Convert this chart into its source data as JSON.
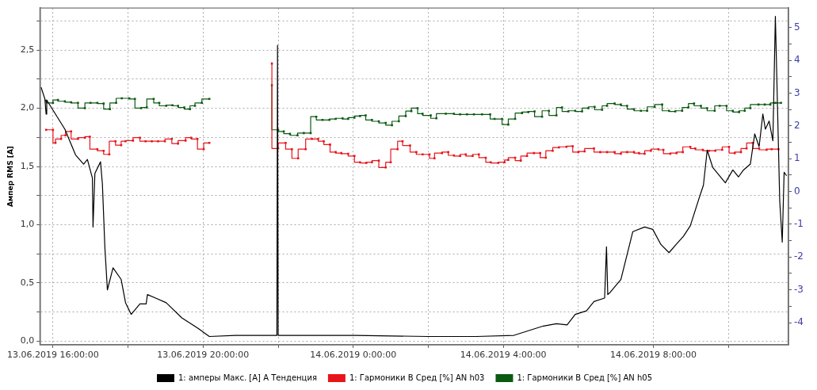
{
  "chart_data": {
    "type": "line",
    "ylabel": "Ампер RMS [A]",
    "grid": true,
    "legend": "bottom",
    "xlim": [
      "2019-06-13T15:39",
      "2019-06-14T11:36"
    ],
    "xticks": [
      {
        "value": "2019-06-13T16:00",
        "label": "13.06.2019 16:00:00"
      },
      {
        "value": "2019-06-13T18:00",
        "label": null
      },
      {
        "value": "2019-06-13T20:00",
        "label": "13.06.2019 20:00:00"
      },
      {
        "value": "2019-06-13T22:00",
        "label": null
      },
      {
        "value": "2019-06-14T00:00",
        "label": "14.06.2019 0:00:00"
      },
      {
        "value": "2019-06-14T02:00",
        "label": null
      },
      {
        "value": "2019-06-14T04:00",
        "label": "14.06.2019 4:00:00"
      },
      {
        "value": "2019-06-14T06:00",
        "label": null
      },
      {
        "value": "2019-06-14T08:00",
        "label": "14.06.2019 8:00:00"
      },
      {
        "value": "2019-06-14T10:00",
        "label": null
      }
    ],
    "ylim": [
      -0.03,
      2.86
    ],
    "yticks": [
      {
        "value": 0,
        "label": "0,0"
      },
      {
        "value": 0.25,
        "label": null
      },
      {
        "value": 0.5,
        "label": "0,5"
      },
      {
        "value": 0.75,
        "label": null
      },
      {
        "value": 1,
        "label": "1,0"
      },
      {
        "value": 1.25,
        "label": null
      },
      {
        "value": 1.5,
        "label": "1,5"
      },
      {
        "value": 1.75,
        "label": null
      },
      {
        "value": 2,
        "label": "2,0"
      },
      {
        "value": 2.25,
        "label": null
      },
      {
        "value": 2.5,
        "label": "2,5"
      },
      {
        "value": 2.75,
        "label": null
      }
    ],
    "y2lim": [
      -4.67,
      5.59
    ],
    "y2ticks": [
      -4,
      {
        "value": -3.5,
        "label": null
      },
      -3,
      {
        "value": -2.5,
        "label": null
      },
      -2,
      {
        "value": -1.5,
        "label": null
      },
      -1,
      {
        "value": -0.5,
        "label": null
      },
      0,
      {
        "value": 0.5,
        "label": null
      },
      1,
      {
        "value": 1.5,
        "label": null
      },
      2,
      {
        "value": 2.5,
        "label": null
      },
      3,
      {
        "value": 3.5,
        "label": null
      },
      4,
      {
        "value": 4.5,
        "label": null
      },
      5
    ],
    "series": [
      {
        "name": "1: амперы Макс. [A] A Тенденция",
        "color": "#000000",
        "type": "line",
        "marker": "none",
        "x": [
          "2019-06-13T15:41",
          "2019-06-13T15:47",
          "2019-06-13T15:49",
          "2019-06-13T15:50",
          "2019-06-13T16:19",
          "2019-06-13T16:36",
          "2019-06-13T16:49",
          "2019-06-13T16:55",
          "2019-06-13T17:03",
          "2019-06-13T17:04",
          "2019-06-13T17:07",
          "2019-06-13T17:16",
          "2019-06-13T17:19",
          "2019-06-13T17:23",
          "2019-06-13T17:27",
          "2019-06-13T17:36",
          "2019-06-13T17:49",
          "2019-06-13T17:56",
          "2019-06-13T18:05",
          "2019-06-13T18:19",
          "2019-06-13T18:29",
          "2019-06-13T18:31",
          "2019-06-13T18:44",
          "2019-06-13T19:01",
          "2019-06-13T19:26",
          "2019-06-13T19:52",
          "2019-06-13T20:10",
          "2019-06-13T20:52",
          "2019-06-13T21:58",
          "2019-06-13T21:59",
          "2019-06-13T22:00",
          "2019-06-13T23:01",
          "2019-06-14T00:04",
          "2019-06-14T02:00",
          "2019-06-14T03:17",
          "2019-06-14T04:17",
          "2019-06-14T05:04",
          "2019-06-14T05:25",
          "2019-06-14T05:42",
          "2019-06-14T05:55",
          "2019-06-14T06:13",
          "2019-06-14T06:25",
          "2019-06-14T06:42",
          "2019-06-14T06:45",
          "2019-06-14T06:47",
          "2019-06-14T06:51",
          "2019-06-14T07:08",
          "2019-06-14T07:27",
          "2019-06-14T07:46",
          "2019-06-14T07:59",
          "2019-06-14T08:12",
          "2019-06-14T08:25",
          "2019-06-14T08:38",
          "2019-06-14T08:48",
          "2019-06-14T08:59",
          "2019-06-14T09:12",
          "2019-06-14T09:20",
          "2019-06-14T09:26",
          "2019-06-14T09:35",
          "2019-06-14T09:55",
          "2019-06-14T10:07",
          "2019-06-14T10:16",
          "2019-06-14T10:24",
          "2019-06-14T10:35",
          "2019-06-14T10:42",
          "2019-06-14T10:49",
          "2019-06-14T10:55",
          "2019-06-14T10:59",
          "2019-06-14T11:05",
          "2019-06-14T11:11",
          "2019-06-14T11:15",
          "2019-06-14T11:22",
          "2019-06-14T11:26",
          "2019-06-14T11:29",
          "2019-06-14T11:33"
        ],
        "values": [
          2.18,
          2.08,
          1.95,
          2.07,
          1.82,
          1.6,
          1.52,
          1.56,
          1.4,
          0.98,
          1.44,
          1.54,
          1.35,
          0.8,
          0.44,
          0.63,
          0.53,
          0.33,
          0.23,
          0.32,
          0.32,
          0.4,
          0.37,
          0.33,
          0.2,
          0.11,
          0.04,
          0.05,
          0.05,
          2.54,
          0.05,
          0.05,
          0.05,
          0.04,
          0.04,
          0.05,
          0.13,
          0.15,
          0.14,
          0.23,
          0.26,
          0.34,
          0.37,
          0.81,
          0.4,
          0.42,
          0.53,
          0.94,
          0.98,
          0.96,
          0.83,
          0.76,
          0.84,
          0.9,
          0.99,
          1.21,
          1.34,
          1.64,
          1.49,
          1.36,
          1.47,
          1.41,
          1.47,
          1.52,
          1.78,
          1.67,
          1.95,
          1.82,
          1.89,
          1.72,
          2.79,
          1.2,
          0.85,
          1.45,
          1.42
        ]
      },
      {
        "name": "1: Гармоники B Сред [%] AN h03",
        "color": "#e8141b",
        "type": "step",
        "axis": "y2",
        "marker": "square",
        "x": [
          "2019-06-13T15:49",
          "2019-06-13T16:00",
          "2019-06-13T16:04",
          "2019-06-13T16:13",
          "2019-06-13T16:20",
          "2019-06-13T16:29",
          "2019-06-13T16:40",
          "2019-06-13T16:51",
          "2019-06-13T16:59",
          "2019-06-13T17:11",
          "2019-06-13T17:21",
          "2019-06-13T17:30",
          "2019-06-13T17:40",
          "2019-06-13T17:49",
          "2019-06-13T17:56",
          "2019-06-13T18:08",
          "2019-06-13T18:19",
          "2019-06-13T18:28",
          "2019-06-13T18:38",
          "2019-06-13T18:48",
          "2019-06-13T18:59",
          "2019-06-13T19:10",
          "2019-06-13T19:20",
          "2019-06-13T19:32",
          "2019-06-13T19:41",
          "2019-06-13T19:51",
          "2019-06-13T20:01",
          "2019-06-13T20:10",
          "2019-06-13T21:00",
          "2019-06-13T21:50",
          "2019-06-13T22:00",
          "2019-06-13T22:12",
          "2019-06-13T22:22",
          "2019-06-13T22:32",
          "2019-06-13T22:44",
          "2019-06-13T22:54",
          "2019-06-13T23:04",
          "2019-06-13T23:13",
          "2019-06-13T23:23",
          "2019-06-13T23:32",
          "2019-06-13T23:41",
          "2019-06-13T23:52",
          "2019-06-14T00:02",
          "2019-06-14T00:11",
          "2019-06-14T00:21",
          "2019-06-14T00:30",
          "2019-06-14T00:41",
          "2019-06-14T00:52",
          "2019-06-14T01:00",
          "2019-06-14T01:11",
          "2019-06-14T01:19",
          "2019-06-14T01:31",
          "2019-06-14T01:41",
          "2019-06-14T01:51",
          "2019-06-14T02:02",
          "2019-06-14T02:10",
          "2019-06-14T02:22",
          "2019-06-14T02:32",
          "2019-06-14T02:41",
          "2019-06-14T02:51",
          "2019-06-14T03:00",
          "2019-06-14T03:11",
          "2019-06-14T03:21",
          "2019-06-14T03:32",
          "2019-06-14T03:40",
          "2019-06-14T03:52",
          "2019-06-14T04:02",
          "2019-06-14T04:08",
          "2019-06-14T04:19",
          "2019-06-14T04:28",
          "2019-06-14T04:38",
          "2019-06-14T04:49",
          "2019-06-14T04:59",
          "2019-06-14T05:08",
          "2019-06-14T05:19",
          "2019-06-14T05:29",
          "2019-06-14T05:41",
          "2019-06-14T05:51",
          "2019-06-14T06:00",
          "2019-06-14T06:10",
          "2019-06-14T06:25",
          "2019-06-14T06:35",
          "2019-06-14T06:46",
          "2019-06-14T06:58",
          "2019-06-14T07:08",
          "2019-06-14T07:18",
          "2019-06-14T07:29",
          "2019-06-14T07:37",
          "2019-06-14T07:46",
          "2019-06-14T07:56",
          "2019-06-14T08:08",
          "2019-06-14T08:16",
          "2019-06-14T08:27",
          "2019-06-14T08:37",
          "2019-06-14T08:47",
          "2019-06-14T08:59",
          "2019-06-14T09:07",
          "2019-06-14T09:19",
          "2019-06-14T09:29",
          "2019-06-14T09:39",
          "2019-06-14T09:50",
          "2019-06-14T10:01",
          "2019-06-14T10:10",
          "2019-06-14T10:20",
          "2019-06-14T10:29",
          "2019-06-14T10:39",
          "2019-06-14T10:49",
          "2019-06-14T11:01",
          "2019-06-14T11:09",
          "2019-06-14T11:20"
        ],
        "values": [
          1.88,
          1.88,
          1.48,
          1.6,
          1.71,
          1.83,
          1.6,
          1.64,
          1.67,
          1.29,
          1.24,
          1.13,
          1.53,
          1.41,
          1.53,
          1.55,
          1.64,
          1.53,
          1.53,
          1.53,
          1.53,
          1.6,
          1.46,
          1.55,
          1.64,
          1.6,
          1.29,
          1.48,
          null,
          3.9,
          1.31,
          1.48,
          1.29,
          1.01,
          1.29,
          1.6,
          1.6,
          1.53,
          1.43,
          1.2,
          1.17,
          1.15,
          1.08,
          0.89,
          0.87,
          0.89,
          0.94,
          0.73,
          0.89,
          1.29,
          1.53,
          1.4,
          1.2,
          1.13,
          1.13,
          1.01,
          1.17,
          1.2,
          1.1,
          1.08,
          1.13,
          1.08,
          1.13,
          1.03,
          0.89,
          0.87,
          0.89,
          0.96,
          1.03,
          0.94,
          1.08,
          1.17,
          1.17,
          1.03,
          1.24,
          1.34,
          1.36,
          1.38,
          1.2,
          1.22,
          1.31,
          1.2,
          1.2,
          1.2,
          1.15,
          1.2,
          1.2,
          1.17,
          1.15,
          1.24,
          1.29,
          1.27,
          1.15,
          1.17,
          1.2,
          1.36,
          1.31,
          1.27,
          1.24,
          1.24,
          1.27,
          1.36,
          1.17,
          1.2,
          1.31,
          1.48,
          1.31,
          1.27,
          1.29,
          1.29
        ]
      },
      {
        "name": "1: Гармоники B Сред [%] AN h05",
        "color": "#0b5a12",
        "type": "step",
        "axis": "y2",
        "marker": "square",
        "x": [
          "2019-06-13T15:49",
          "2019-06-13T16:00",
          "2019-06-13T16:08",
          "2019-06-13T16:19",
          "2019-06-13T16:29",
          "2019-06-13T16:40",
          "2019-06-13T16:51",
          "2019-06-13T17:00",
          "2019-06-13T17:11",
          "2019-06-13T17:21",
          "2019-06-13T17:31",
          "2019-06-13T17:41",
          "2019-06-13T17:50",
          "2019-06-13T18:02",
          "2019-06-13T18:11",
          "2019-06-13T18:21",
          "2019-06-13T18:30",
          "2019-06-13T18:41",
          "2019-06-13T18:50",
          "2019-06-13T19:01",
          "2019-06-13T19:11",
          "2019-06-13T19:20",
          "2019-06-13T19:30",
          "2019-06-13T19:39",
          "2019-06-13T19:47",
          "2019-06-13T19:58",
          "2019-06-13T20:10",
          "2019-06-13T21:00",
          "2019-06-13T21:50",
          "2019-06-13T22:00",
          "2019-06-13T22:09",
          "2019-06-13T22:19",
          "2019-06-13T22:31",
          "2019-06-13T22:41",
          "2019-06-13T22:52",
          "2019-06-13T23:01",
          "2019-06-13T23:11",
          "2019-06-13T23:22",
          "2019-06-13T23:32",
          "2019-06-13T23:43",
          "2019-06-13T23:52",
          "2019-06-14T00:02",
          "2019-06-14T00:11",
          "2019-06-14T00:20",
          "2019-06-14T00:30",
          "2019-06-14T00:41",
          "2019-06-14T00:52",
          "2019-06-14T01:02",
          "2019-06-14T01:13",
          "2019-06-14T01:24",
          "2019-06-14T01:33",
          "2019-06-14T01:43",
          "2019-06-14T01:51",
          "2019-06-14T02:04",
          "2019-06-14T02:13",
          "2019-06-14T02:28",
          "2019-06-14T02:41",
          "2019-06-14T02:51",
          "2019-06-14T03:02",
          "2019-06-14T03:13",
          "2019-06-14T03:26",
          "2019-06-14T03:39",
          "2019-06-14T03:46",
          "2019-06-14T03:58",
          "2019-06-14T04:08",
          "2019-06-14T04:19",
          "2019-06-14T04:30",
          "2019-06-14T04:40",
          "2019-06-14T04:50",
          "2019-06-14T05:02",
          "2019-06-14T05:13",
          "2019-06-14T05:25",
          "2019-06-14T05:34",
          "2019-06-14T05:44",
          "2019-06-14T05:55",
          "2019-06-14T06:06",
          "2019-06-14T06:16",
          "2019-06-14T06:26",
          "2019-06-14T06:38",
          "2019-06-14T06:46",
          "2019-06-14T06:58",
          "2019-06-14T07:08",
          "2019-06-14T07:18",
          "2019-06-14T07:29",
          "2019-06-14T07:40",
          "2019-06-14T07:50",
          "2019-06-14T08:02",
          "2019-06-14T08:14",
          "2019-06-14T08:25",
          "2019-06-14T08:35",
          "2019-06-14T08:46",
          "2019-06-14T08:56",
          "2019-06-14T09:05",
          "2019-06-14T09:16",
          "2019-06-14T09:26",
          "2019-06-14T09:38",
          "2019-06-14T09:46",
          "2019-06-14T09:57",
          "2019-06-14T10:07",
          "2019-06-14T10:17",
          "2019-06-14T10:26",
          "2019-06-14T10:35",
          "2019-06-14T10:48",
          "2019-06-14T10:58",
          "2019-06-14T11:07",
          "2019-06-14T11:15",
          "2019-06-14T11:24"
        ],
        "values": [
          2.77,
          2.7,
          2.79,
          2.75,
          2.72,
          2.7,
          2.54,
          2.7,
          2.7,
          2.68,
          2.51,
          2.7,
          2.84,
          2.84,
          2.82,
          2.54,
          2.56,
          2.82,
          2.7,
          2.61,
          2.63,
          2.61,
          2.56,
          2.51,
          2.61,
          2.7,
          2.82,
          null,
          3.24,
          1.88,
          1.83,
          1.76,
          1.71,
          1.78,
          1.78,
          2.28,
          2.18,
          2.18,
          2.21,
          2.23,
          2.21,
          2.25,
          2.3,
          2.32,
          2.18,
          2.14,
          2.09,
          2.02,
          2.14,
          2.3,
          2.45,
          2.54,
          2.37,
          2.32,
          2.23,
          2.37,
          2.37,
          2.35,
          2.35,
          2.35,
          2.35,
          2.35,
          2.21,
          2.21,
          2.04,
          2.21,
          2.39,
          2.42,
          2.44,
          2.28,
          2.46,
          2.32,
          2.56,
          2.44,
          2.46,
          2.44,
          2.54,
          2.58,
          2.49,
          2.61,
          2.68,
          2.65,
          2.61,
          2.51,
          2.46,
          2.46,
          2.58,
          2.65,
          2.46,
          2.44,
          2.46,
          2.56,
          2.68,
          2.61,
          2.54,
          2.46,
          2.61,
          2.61,
          2.46,
          2.42,
          2.46,
          2.54,
          2.65,
          2.65,
          2.65,
          2.7,
          2.7
        ]
      }
    ]
  }
}
